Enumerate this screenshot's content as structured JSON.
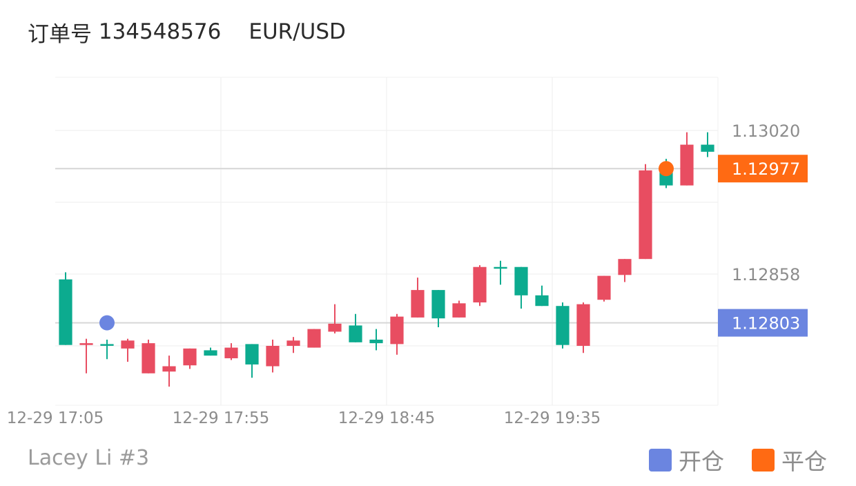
{
  "header": {
    "order_label": "订单号",
    "order_id": "134548576",
    "symbol": "EUR/USD"
  },
  "footer": {
    "account": "Lacey Li #3"
  },
  "legend": [
    {
      "label": "开仓",
      "color": "#6b85e0"
    },
    {
      "label": "平仓",
      "color": "#ff6a13"
    }
  ],
  "colors": {
    "up": "#0cab8f",
    "down": "#e84d61",
    "open_marker": "#6b85e0",
    "close_marker": "#ff6a13"
  },
  "chart_data": {
    "type": "candlestick",
    "x_tick_labels": [
      "12-29 17:05",
      "12-29 17:55",
      "12-29 18:45",
      "12-29 19:35"
    ],
    "y_tick_labels": [
      "1.13020",
      "1.12858"
    ],
    "y_ticks": [
      1.1302,
      1.12858
    ],
    "ylim": [
      1.1271,
      1.1308
    ],
    "grid": true,
    "candles": [
      {
        "o": 1.12778,
        "h": 1.1286,
        "l": 1.12778,
        "c": 1.12852
      },
      {
        "o": 1.1278,
        "h": 1.12785,
        "l": 1.12746,
        "c": 1.12778
      },
      {
        "o": 1.12779,
        "h": 1.12784,
        "l": 1.12762,
        "c": 1.12779
      },
      {
        "o": 1.12783,
        "h": 1.12785,
        "l": 1.12759,
        "c": 1.12774
      },
      {
        "o": 1.1278,
        "h": 1.12784,
        "l": 1.12746,
        "c": 1.12746
      },
      {
        "o": 1.12754,
        "h": 1.12766,
        "l": 1.12731,
        "c": 1.12748
      },
      {
        "o": 1.12774,
        "h": 1.12774,
        "l": 1.12751,
        "c": 1.12755
      },
      {
        "o": 1.12766,
        "h": 1.12775,
        "l": 1.12766,
        "c": 1.12772
      },
      {
        "o": 1.12775,
        "h": 1.1278,
        "l": 1.12761,
        "c": 1.12763
      },
      {
        "o": 1.12756,
        "h": 1.12779,
        "l": 1.12741,
        "c": 1.12779
      },
      {
        "o": 1.12777,
        "h": 1.12784,
        "l": 1.12747,
        "c": 1.12754
      },
      {
        "o": 1.12783,
        "h": 1.12787,
        "l": 1.12769,
        "c": 1.12777
      },
      {
        "o": 1.12796,
        "h": 1.12796,
        "l": 1.12775,
        "c": 1.12775
      },
      {
        "o": 1.12802,
        "h": 1.12824,
        "l": 1.12791,
        "c": 1.12793
      },
      {
        "o": 1.12781,
        "h": 1.12813,
        "l": 1.12781,
        "c": 1.128
      },
      {
        "o": 1.1278,
        "h": 1.12796,
        "l": 1.12772,
        "c": 1.12784
      },
      {
        "o": 1.1281,
        "h": 1.12813,
        "l": 1.12767,
        "c": 1.12779
      },
      {
        "o": 1.1284,
        "h": 1.12854,
        "l": 1.12809,
        "c": 1.12809
      },
      {
        "o": 1.12808,
        "h": 1.1284,
        "l": 1.12798,
        "c": 1.1284
      },
      {
        "o": 1.12825,
        "h": 1.12828,
        "l": 1.12809,
        "c": 1.12809
      },
      {
        "o": 1.12866,
        "h": 1.12868,
        "l": 1.12822,
        "c": 1.12826
      },
      {
        "o": 1.12865,
        "h": 1.12873,
        "l": 1.12846,
        "c": 1.12866
      },
      {
        "o": 1.12834,
        "h": 1.12866,
        "l": 1.12819,
        "c": 1.12866
      },
      {
        "o": 1.12822,
        "h": 1.12845,
        "l": 1.12822,
        "c": 1.12834
      },
      {
        "o": 1.12778,
        "h": 1.12826,
        "l": 1.12774,
        "c": 1.12822
      },
      {
        "o": 1.12824,
        "h": 1.12826,
        "l": 1.12769,
        "c": 1.12777
      },
      {
        "o": 1.12856,
        "h": 1.12856,
        "l": 1.12827,
        "c": 1.12829
      },
      {
        "o": 1.12875,
        "h": 1.12875,
        "l": 1.12849,
        "c": 1.12857
      },
      {
        "o": 1.12975,
        "h": 1.12982,
        "l": 1.12875,
        "c": 1.12875
      },
      {
        "o": 1.12958,
        "h": 1.12988,
        "l": 1.12955,
        "c": 1.12975
      },
      {
        "o": 1.13004,
        "h": 1.13018,
        "l": 1.12958,
        "c": 1.12958
      },
      {
        "o": 1.12996,
        "h": 1.13018,
        "l": 1.1299,
        "c": 1.13004
      }
    ],
    "open_trade": {
      "index": 2,
      "price": 1.12803,
      "label": "1.12803"
    },
    "close_trade": {
      "index": 29,
      "price": 1.12977,
      "label": "1.12977"
    }
  }
}
